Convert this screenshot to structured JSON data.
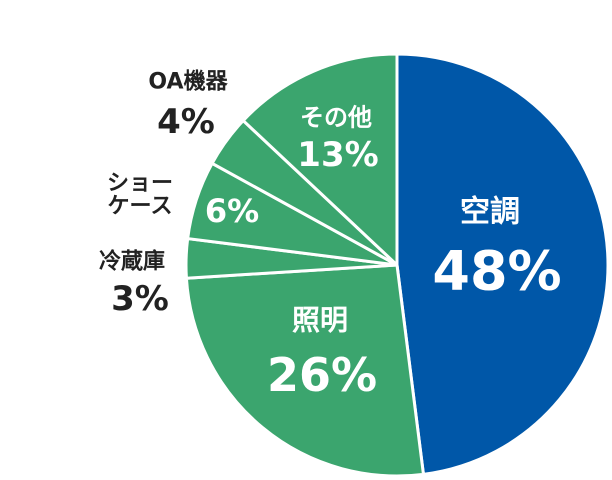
{
  "chart_data": {
    "type": "pie",
    "categories": [
      "空調",
      "照明",
      "冷蔵庫",
      "ショーケース",
      "OA機器",
      "その他"
    ],
    "values": [
      48,
      26,
      3,
      6,
      4,
      13
    ],
    "value_labels": [
      "48%",
      "26%",
      "3%",
      "6%",
      "4%",
      "13%"
    ],
    "colors": [
      "#0057a8",
      "#3ba56e",
      "#3ba56e",
      "#3ba56e",
      "#3ba56e",
      "#3ba56e"
    ]
  }
}
